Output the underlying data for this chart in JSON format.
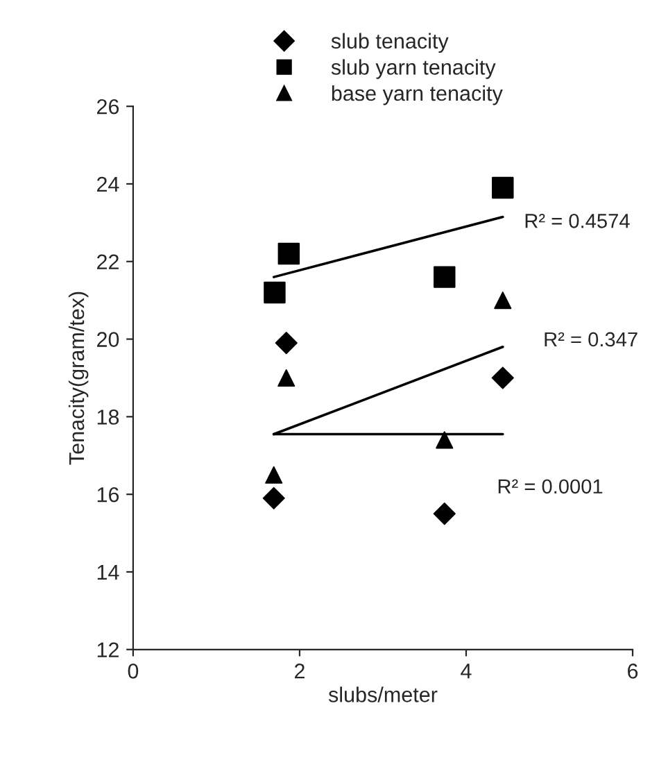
{
  "chart_data": {
    "type": "scatter",
    "xlabel": "slubs/meter",
    "ylabel": "Tenacity(gram/tex)",
    "xlim": [
      0,
      6
    ],
    "xticks": [
      0,
      2,
      4,
      6
    ],
    "ylim": [
      12,
      26
    ],
    "yticks": [
      12,
      14,
      16,
      18,
      20,
      22,
      24,
      26
    ],
    "grid": false,
    "legend": "top",
    "series": [
      {
        "name": "slub tenacity",
        "marker": "diamond",
        "color": "#000000",
        "x": [
          1.84,
          1.69,
          3.74,
          4.44
        ],
        "values": [
          19.9,
          15.9,
          15.5,
          19.0
        ]
      },
      {
        "name": "slub yarn tenacity",
        "marker": "square",
        "color": "#000000",
        "x": [
          1.7,
          1.87,
          3.74,
          4.44
        ],
        "values": [
          21.2,
          22.2,
          21.6,
          23.9
        ]
      },
      {
        "name": "base yarn tenacity",
        "marker": "triangle",
        "color": "#000000",
        "x": [
          1.69,
          1.84,
          3.74,
          4.44
        ],
        "values": [
          16.5,
          19.0,
          17.4,
          21.0
        ]
      },
      {
        "type": "line",
        "marker": "none",
        "line_style": "solid",
        "color": "#000000",
        "x": [
          1.69,
          4.44
        ],
        "values": [
          21.6,
          23.15
        ]
      },
      {
        "type": "line",
        "marker": "none",
        "line_style": "solid",
        "color": "#000000",
        "x": [
          1.69,
          4.44
        ],
        "values": [
          17.55,
          19.8
        ]
      },
      {
        "type": "line",
        "marker": "none",
        "line_style": "solid",
        "color": "#000000",
        "x": [
          1.69,
          4.44
        ],
        "values": [
          17.55,
          17.55
        ]
      }
    ],
    "annotations": [
      "R² = 0.4574",
      "R² = 0.347",
      "R² = 0.0001"
    ]
  }
}
